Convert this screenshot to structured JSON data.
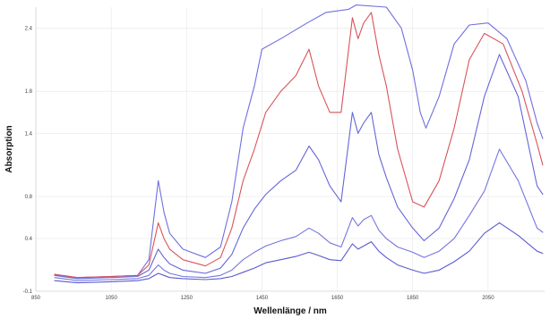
{
  "chart_data": {
    "type": "line",
    "title": "",
    "xlabel": "Wellenlänge / nm",
    "ylabel": "Absorption",
    "xlim": [
      850,
      2200
    ],
    "ylim": [
      -0.1,
      2.6
    ],
    "x_ticks": [
      850,
      1050,
      1250,
      1450,
      1650,
      1850,
      2050
    ],
    "y_ticks": [
      -0.1,
      0.4,
      0.8,
      1.4,
      1.8,
      2.4
    ],
    "y_tick_labels": [
      "-0.1",
      "0.4",
      "0.8",
      "1.4",
      "1.8",
      "2.4"
    ],
    "grid": true,
    "legend": "none",
    "series": [
      {
        "color": "#6f6fe0",
        "points": [
          [
            900,
            0.06
          ],
          [
            960,
            0.03
          ],
          [
            1050,
            0.04
          ],
          [
            1120,
            0.05
          ],
          [
            1150,
            0.2
          ],
          [
            1175,
            0.95
          ],
          [
            1190,
            0.65
          ],
          [
            1205,
            0.45
          ],
          [
            1240,
            0.3
          ],
          [
            1300,
            0.22
          ],
          [
            1340,
            0.32
          ],
          [
            1370,
            0.75
          ],
          [
            1400,
            1.45
          ],
          [
            1430,
            1.85
          ],
          [
            1450,
            2.2
          ],
          [
            1500,
            2.3
          ],
          [
            1570,
            2.45
          ],
          [
            1620,
            2.55
          ],
          [
            1680,
            2.58
          ],
          [
            1700,
            2.62
          ],
          [
            1780,
            2.6
          ],
          [
            1820,
            2.4
          ],
          [
            1850,
            2.0
          ],
          [
            1870,
            1.6
          ],
          [
            1885,
            1.45
          ],
          [
            1920,
            1.75
          ],
          [
            1960,
            2.25
          ],
          [
            2000,
            2.43
          ],
          [
            2050,
            2.45
          ],
          [
            2100,
            2.3
          ],
          [
            2150,
            1.9
          ],
          [
            2180,
            1.5
          ],
          [
            2195,
            1.35
          ]
        ]
      },
      {
        "color": "#d9535a",
        "points": [
          [
            900,
            0.06
          ],
          [
            960,
            0.03
          ],
          [
            1050,
            0.04
          ],
          [
            1120,
            0.05
          ],
          [
            1150,
            0.15
          ],
          [
            1175,
            0.55
          ],
          [
            1190,
            0.4
          ],
          [
            1205,
            0.3
          ],
          [
            1240,
            0.2
          ],
          [
            1300,
            0.14
          ],
          [
            1340,
            0.22
          ],
          [
            1370,
            0.5
          ],
          [
            1400,
            0.95
          ],
          [
            1430,
            1.25
          ],
          [
            1460,
            1.6
          ],
          [
            1500,
            1.8
          ],
          [
            1540,
            1.95
          ],
          [
            1575,
            2.2
          ],
          [
            1600,
            1.85
          ],
          [
            1630,
            1.6
          ],
          [
            1660,
            1.6
          ],
          [
            1690,
            2.5
          ],
          [
            1705,
            2.3
          ],
          [
            1720,
            2.45
          ],
          [
            1740,
            2.55
          ],
          [
            1760,
            2.15
          ],
          [
            1780,
            1.85
          ],
          [
            1810,
            1.25
          ],
          [
            1850,
            0.75
          ],
          [
            1880,
            0.7
          ],
          [
            1920,
            0.95
          ],
          [
            1960,
            1.45
          ],
          [
            2000,
            2.1
          ],
          [
            2040,
            2.35
          ],
          [
            2090,
            2.25
          ],
          [
            2140,
            1.8
          ],
          [
            2180,
            1.3
          ],
          [
            2195,
            1.1
          ]
        ]
      },
      {
        "color": "#6565d8",
        "points": [
          [
            900,
            0.05
          ],
          [
            960,
            0.02
          ],
          [
            1050,
            0.03
          ],
          [
            1120,
            0.04
          ],
          [
            1150,
            0.1
          ],
          [
            1175,
            0.3
          ],
          [
            1190,
            0.22
          ],
          [
            1205,
            0.16
          ],
          [
            1240,
            0.1
          ],
          [
            1300,
            0.07
          ],
          [
            1340,
            0.12
          ],
          [
            1370,
            0.25
          ],
          [
            1400,
            0.5
          ],
          [
            1430,
            0.68
          ],
          [
            1460,
            0.82
          ],
          [
            1500,
            0.95
          ],
          [
            1540,
            1.05
          ],
          [
            1575,
            1.28
          ],
          [
            1600,
            1.15
          ],
          [
            1630,
            0.9
          ],
          [
            1660,
            0.75
          ],
          [
            1690,
            1.6
          ],
          [
            1705,
            1.4
          ],
          [
            1720,
            1.5
          ],
          [
            1740,
            1.6
          ],
          [
            1760,
            1.2
          ],
          [
            1780,
            0.98
          ],
          [
            1810,
            0.7
          ],
          [
            1850,
            0.5
          ],
          [
            1880,
            0.38
          ],
          [
            1920,
            0.5
          ],
          [
            1960,
            0.78
          ],
          [
            2000,
            1.15
          ],
          [
            2040,
            1.75
          ],
          [
            2080,
            2.15
          ],
          [
            2130,
            1.75
          ],
          [
            2180,
            0.9
          ],
          [
            2195,
            0.82
          ]
        ]
      },
      {
        "color": "#7575e0",
        "points": [
          [
            900,
            0.03
          ],
          [
            960,
            0.0
          ],
          [
            1050,
            0.01
          ],
          [
            1120,
            0.02
          ],
          [
            1150,
            0.05
          ],
          [
            1175,
            0.15
          ],
          [
            1190,
            0.1
          ],
          [
            1205,
            0.07
          ],
          [
            1240,
            0.04
          ],
          [
            1300,
            0.03
          ],
          [
            1340,
            0.05
          ],
          [
            1370,
            0.1
          ],
          [
            1400,
            0.2
          ],
          [
            1430,
            0.27
          ],
          [
            1460,
            0.33
          ],
          [
            1500,
            0.38
          ],
          [
            1540,
            0.42
          ],
          [
            1575,
            0.5
          ],
          [
            1600,
            0.45
          ],
          [
            1630,
            0.36
          ],
          [
            1660,
            0.32
          ],
          [
            1690,
            0.6
          ],
          [
            1705,
            0.52
          ],
          [
            1720,
            0.58
          ],
          [
            1740,
            0.62
          ],
          [
            1760,
            0.48
          ],
          [
            1780,
            0.4
          ],
          [
            1810,
            0.32
          ],
          [
            1850,
            0.27
          ],
          [
            1880,
            0.22
          ],
          [
            1920,
            0.28
          ],
          [
            1960,
            0.4
          ],
          [
            2000,
            0.62
          ],
          [
            2040,
            0.85
          ],
          [
            2080,
            1.25
          ],
          [
            2130,
            0.95
          ],
          [
            2180,
            0.5
          ],
          [
            2195,
            0.46
          ]
        ]
      },
      {
        "color": "#5a5ad0",
        "points": [
          [
            900,
            0.0
          ],
          [
            960,
            -0.02
          ],
          [
            1050,
            -0.01
          ],
          [
            1120,
            0.0
          ],
          [
            1150,
            0.02
          ],
          [
            1175,
            0.07
          ],
          [
            1190,
            0.05
          ],
          [
            1205,
            0.03
          ],
          [
            1240,
            0.02
          ],
          [
            1300,
            0.01
          ],
          [
            1340,
            0.02
          ],
          [
            1370,
            0.04
          ],
          [
            1400,
            0.08
          ],
          [
            1430,
            0.12
          ],
          [
            1460,
            0.17
          ],
          [
            1500,
            0.2
          ],
          [
            1540,
            0.23
          ],
          [
            1575,
            0.27
          ],
          [
            1600,
            0.24
          ],
          [
            1630,
            0.2
          ],
          [
            1660,
            0.19
          ],
          [
            1690,
            0.35
          ],
          [
            1705,
            0.3
          ],
          [
            1720,
            0.33
          ],
          [
            1740,
            0.37
          ],
          [
            1760,
            0.28
          ],
          [
            1780,
            0.22
          ],
          [
            1810,
            0.15
          ],
          [
            1850,
            0.1
          ],
          [
            1880,
            0.07
          ],
          [
            1920,
            0.1
          ],
          [
            1960,
            0.18
          ],
          [
            2000,
            0.28
          ],
          [
            2040,
            0.45
          ],
          [
            2080,
            0.55
          ],
          [
            2130,
            0.43
          ],
          [
            2180,
            0.28
          ],
          [
            2195,
            0.26
          ]
        ]
      }
    ]
  }
}
